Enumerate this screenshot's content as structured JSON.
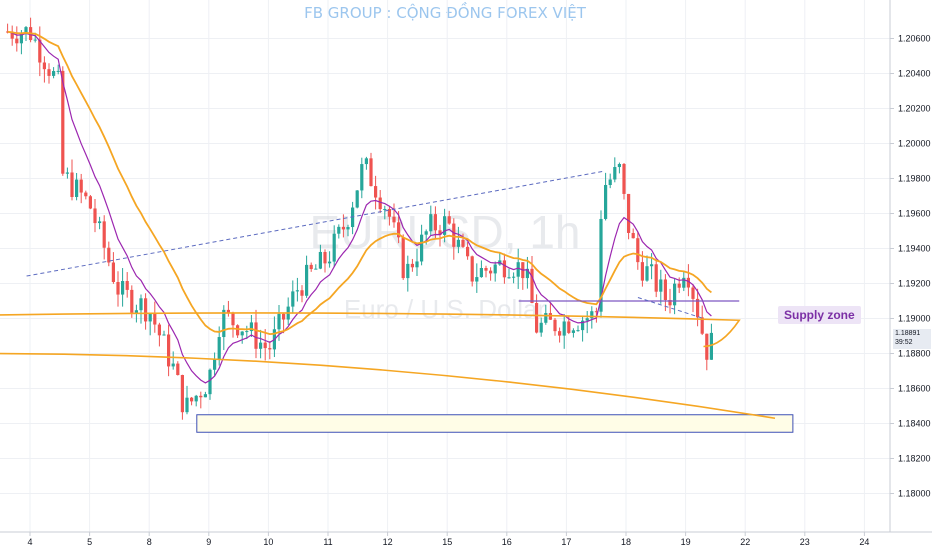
{
  "header": {
    "title": "FB GROUP : CỘNG ĐỒNG FOREX VIỆT"
  },
  "watermark": {
    "symbol": "EURUSD, 1h",
    "name": "Euro / U.S. Dollar"
  },
  "price_tag": {
    "price": "1.18891",
    "countdown": "39:52"
  },
  "annotation": {
    "supply_zone_label": "Supply zone"
  },
  "colors": {
    "up": "#26a69a",
    "down": "#ef5350",
    "ma_fast": "#9c27b0",
    "ma_slow": "#f5a623",
    "zone_fill": "#fffde7",
    "zone_border": "#3f51b5",
    "title": "#9cc6ee"
  },
  "chart_data": {
    "type": "candlestick",
    "symbol": "EURUSD",
    "timeframe": "1h",
    "x_ticks": [
      "4",
      "5",
      "8",
      "9",
      "10",
      "11",
      "12",
      "15",
      "16",
      "17",
      "18",
      "19",
      "22",
      "23",
      "24"
    ],
    "y_ticks": [
      "1.20600",
      "1.20400",
      "1.20200",
      "1.20000",
      "1.19800",
      "1.19600",
      "1.19400",
      "1.19200",
      "1.19000",
      "1.18800",
      "1.18600",
      "1.18400",
      "1.18200",
      "1.18000"
    ],
    "y_range": [
      1.1778,
      1.2082
    ],
    "close_path": [
      [
        "4",
        1.2064
      ],
      [
        "4.5",
        1.2032
      ],
      [
        "4.55",
        1.1982
      ],
      [
        "5",
        1.1965
      ],
      [
        "5.5",
        1.1915
      ],
      [
        "8",
        1.1905
      ],
      [
        "8.4",
        1.1872
      ],
      [
        "8.6",
        1.1848
      ],
      [
        "9",
        1.1865
      ],
      [
        "9.2",
        1.1902
      ],
      [
        "9.6",
        1.1895
      ],
      [
        "10",
        1.1882
      ],
      [
        "10.5",
        1.1918
      ],
      [
        "11",
        1.1935
      ],
      [
        "11.3",
        1.1955
      ],
      [
        "11.6",
        1.1988
      ],
      [
        "12",
        1.1962
      ],
      [
        "12.3",
        1.1925
      ],
      [
        "12.7",
        1.1952
      ],
      [
        "15",
        1.1955
      ],
      [
        "15.4",
        1.1925
      ],
      [
        "16",
        1.1932
      ],
      [
        "16.3",
        1.1928
      ],
      [
        "16.5",
        1.1895
      ],
      [
        "17",
        1.1898
      ],
      [
        "17.5",
        1.1902
      ],
      [
        "17.6",
        1.1975
      ],
      [
        "17.9",
        1.1985
      ],
      [
        "18",
        1.1958
      ],
      [
        "18.2",
        1.1932
      ],
      [
        "18.4",
        1.1925
      ],
      [
        "18.7",
        1.191
      ],
      [
        "19",
        1.1932
      ],
      [
        "19.2",
        1.1905
      ],
      [
        "19.35",
        1.1882
      ],
      [
        "19.5",
        1.1889
      ]
    ],
    "moving_averages": [
      {
        "color": "#9c27b0"
      },
      {
        "color": "#f5a623"
      }
    ],
    "annotations": {
      "demand_zone": {
        "from": "9",
        "to": "22.8",
        "low": 1.1835,
        "high": 1.1845
      },
      "supply_zone": {
        "from": "19.3",
        "to": "21.4",
        "low": 1.18955,
        "high": 1.19045
      },
      "neckline": {
        "from": "16.2",
        "to": "19.9",
        "price": 1.191
      },
      "projection": [
        [
          "19.3",
          1.1884
        ],
        [
          "19.9",
          1.1899
        ],
        [
          "20.4",
          1.1902
        ],
        [
          "21.2",
          1.188
        ],
        [
          "22.5",
          1.1843
        ]
      ]
    }
  }
}
